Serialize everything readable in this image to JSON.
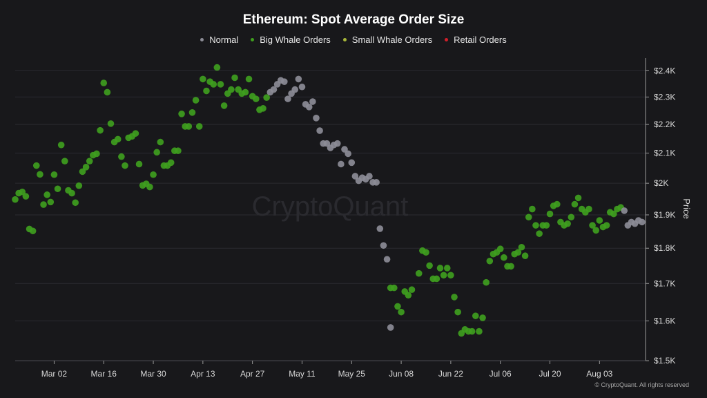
{
  "colors": {
    "background": "#18181b",
    "normal": "#8c8c96",
    "big_whale": "#3f9e1e",
    "small_whale": "#a7b63a",
    "retail": "#d11f2a",
    "grid": "#2b2b31"
  },
  "watermark": "CryptoQuant",
  "copyright": "© CryptoQuant. All rights reserved",
  "chart_data": {
    "type": "scatter",
    "title": "Ethereum: Spot Average Order Size",
    "ylabel": "Price",
    "xlabel": "",
    "legend_position": "top-center",
    "grid": true,
    "legend": [
      {
        "name": "Normal",
        "color": "#8c8c96"
      },
      {
        "name": "Big Whale Orders",
        "color": "#3f9e1e"
      },
      {
        "name": "Small Whale Orders",
        "color": "#a7b63a"
      },
      {
        "name": "Retail Orders",
        "color": "#d11f2a"
      }
    ],
    "x_ticks": [
      "Mar 02",
      "Mar 16",
      "Mar 30",
      "Apr 13",
      "Apr 27",
      "May 11",
      "May 25",
      "Jun 08",
      "Jun 22",
      "Jul 06",
      "Jul 20",
      "Aug 03"
    ],
    "y_ticks": [
      1500,
      1600,
      1700,
      1800,
      1900,
      2000,
      2100,
      2200,
      2300,
      2400
    ],
    "y_tick_labels": [
      "$1.5K",
      "$1.6K",
      "$1.7K",
      "$1.8K",
      "$1.9K",
      "$2K",
      "$2.1K",
      "$2.2K",
      "$2.3K",
      "$2.4K"
    ],
    "x_range": [
      "2023-02-19",
      "2023-08-16"
    ],
    "y_scale": "log",
    "ylim": [
      1500,
      2450
    ],
    "series": [
      {
        "name": "Big Whale Orders",
        "color": "#3f9e1e",
        "points": [
          [
            "2023-02-19",
            1948
          ],
          [
            "2023-02-20",
            1968
          ],
          [
            "2023-02-21",
            1972
          ],
          [
            "2023-02-22",
            1958
          ],
          [
            "2023-02-23",
            1857
          ],
          [
            "2023-02-24",
            1851
          ],
          [
            "2023-02-25",
            2058
          ],
          [
            "2023-02-26",
            2029
          ],
          [
            "2023-02-27",
            1932
          ],
          [
            "2023-02-28",
            1963
          ],
          [
            "2023-03-01",
            1940
          ],
          [
            "2023-03-02",
            2028
          ],
          [
            "2023-03-03",
            1982
          ],
          [
            "2023-03-04",
            2128
          ],
          [
            "2023-03-05",
            2073
          ],
          [
            "2023-03-06",
            1977
          ],
          [
            "2023-03-07",
            1968
          ],
          [
            "2023-03-08",
            1938
          ],
          [
            "2023-03-09",
            1992
          ],
          [
            "2023-03-10",
            2038
          ],
          [
            "2023-03-11",
            2053
          ],
          [
            "2023-03-12",
            2073
          ],
          [
            "2023-03-13",
            2093
          ],
          [
            "2023-03-14",
            2098
          ],
          [
            "2023-03-15",
            2179
          ],
          [
            "2023-03-16",
            2353
          ],
          [
            "2023-03-17",
            2318
          ],
          [
            "2023-03-18",
            2203
          ],
          [
            "2023-03-19",
            2138
          ],
          [
            "2023-03-20",
            2148
          ],
          [
            "2023-03-21",
            2088
          ],
          [
            "2023-03-22",
            2058
          ],
          [
            "2023-03-23",
            2153
          ],
          [
            "2023-03-24",
            2158
          ],
          [
            "2023-03-25",
            2168
          ],
          [
            "2023-03-26",
            2063
          ],
          [
            "2023-03-27",
            1993
          ],
          [
            "2023-03-28",
            1998
          ],
          [
            "2023-03-29",
            1988
          ],
          [
            "2023-03-30",
            2028
          ],
          [
            "2023-03-31",
            2103
          ],
          [
            "2023-04-01",
            2138
          ],
          [
            "2023-04-02",
            2058
          ],
          [
            "2023-04-03",
            2058
          ],
          [
            "2023-04-04",
            2068
          ],
          [
            "2023-04-05",
            2108
          ],
          [
            "2023-04-06",
            2108
          ],
          [
            "2023-04-07",
            2238
          ],
          [
            "2023-04-08",
            2193
          ],
          [
            "2023-04-09",
            2193
          ],
          [
            "2023-04-10",
            2243
          ],
          [
            "2023-04-11",
            2288
          ],
          [
            "2023-04-12",
            2193
          ],
          [
            "2023-04-13",
            2368
          ],
          [
            "2023-04-14",
            2323
          ],
          [
            "2023-04-15",
            2358
          ],
          [
            "2023-04-16",
            2348
          ],
          [
            "2023-04-17",
            2413
          ],
          [
            "2023-04-18",
            2348
          ],
          [
            "2023-04-19",
            2268
          ],
          [
            "2023-04-20",
            2313
          ],
          [
            "2023-04-21",
            2328
          ],
          [
            "2023-04-22",
            2373
          ],
          [
            "2023-04-23",
            2328
          ],
          [
            "2023-04-24",
            2313
          ],
          [
            "2023-04-25",
            2318
          ],
          [
            "2023-04-26",
            2368
          ],
          [
            "2023-04-27",
            2303
          ],
          [
            "2023-04-28",
            2293
          ],
          [
            "2023-04-29",
            2253
          ],
          [
            "2023-04-30",
            2258
          ],
          [
            "2023-05-01",
            2298
          ],
          [
            "2023-06-05",
            1688
          ],
          [
            "2023-06-06",
            1688
          ],
          [
            "2023-06-07",
            1638
          ],
          [
            "2023-06-08",
            1623
          ],
          [
            "2023-06-09",
            1678
          ],
          [
            "2023-06-10",
            1668
          ],
          [
            "2023-06-11",
            1683
          ],
          [
            "2023-06-13",
            1728
          ],
          [
            "2023-06-14",
            1793
          ],
          [
            "2023-06-15",
            1788
          ],
          [
            "2023-06-16",
            1750
          ],
          [
            "2023-06-17",
            1713
          ],
          [
            "2023-06-18",
            1713
          ],
          [
            "2023-06-19",
            1743
          ],
          [
            "2023-06-20",
            1723
          ],
          [
            "2023-06-21",
            1743
          ],
          [
            "2023-06-22",
            1723
          ],
          [
            "2023-06-23",
            1663
          ],
          [
            "2023-06-24",
            1623
          ],
          [
            "2023-06-25",
            1568
          ],
          [
            "2023-06-26",
            1578
          ],
          [
            "2023-06-27",
            1573
          ],
          [
            "2023-06-28",
            1573
          ],
          [
            "2023-06-29",
            1613
          ],
          [
            "2023-06-30",
            1573
          ],
          [
            "2023-07-01",
            1608
          ],
          [
            "2023-07-02",
            1703
          ],
          [
            "2023-07-03",
            1763
          ],
          [
            "2023-07-04",
            1783
          ],
          [
            "2023-07-05",
            1788
          ],
          [
            "2023-07-06",
            1798
          ],
          [
            "2023-07-07",
            1773
          ],
          [
            "2023-07-08",
            1748
          ],
          [
            "2023-07-09",
            1748
          ],
          [
            "2023-07-10",
            1783
          ],
          [
            "2023-07-11",
            1788
          ],
          [
            "2023-07-12",
            1803
          ],
          [
            "2023-07-13",
            1778
          ],
          [
            "2023-07-14",
            1893
          ],
          [
            "2023-07-15",
            1918
          ],
          [
            "2023-07-16",
            1868
          ],
          [
            "2023-07-17",
            1843
          ],
          [
            "2023-07-18",
            1868
          ],
          [
            "2023-07-19",
            1868
          ],
          [
            "2023-07-20",
            1903
          ],
          [
            "2023-07-21",
            1928
          ],
          [
            "2023-07-22",
            1933
          ],
          [
            "2023-07-23",
            1878
          ],
          [
            "2023-07-24",
            1868
          ],
          [
            "2023-07-25",
            1873
          ],
          [
            "2023-07-26",
            1893
          ],
          [
            "2023-07-27",
            1933
          ],
          [
            "2023-07-28",
            1953
          ],
          [
            "2023-07-29",
            1918
          ],
          [
            "2023-07-30",
            1908
          ],
          [
            "2023-07-31",
            1918
          ],
          [
            "2023-08-01",
            1868
          ],
          [
            "2023-08-02",
            1853
          ],
          [
            "2023-08-03",
            1883
          ],
          [
            "2023-08-04",
            1863
          ],
          [
            "2023-08-05",
            1868
          ],
          [
            "2023-08-06",
            1908
          ],
          [
            "2023-08-07",
            1903
          ],
          [
            "2023-08-08",
            1918
          ],
          [
            "2023-08-09",
            1923
          ]
        ]
      },
      {
        "name": "Normal",
        "color": "#8c8c96",
        "points": [
          [
            "2023-05-02",
            2318
          ],
          [
            "2023-05-03",
            2328
          ],
          [
            "2023-05-04",
            2348
          ],
          [
            "2023-05-05",
            2363
          ],
          [
            "2023-05-06",
            2358
          ],
          [
            "2023-05-07",
            2293
          ],
          [
            "2023-05-08",
            2313
          ],
          [
            "2023-05-09",
            2328
          ],
          [
            "2023-05-10",
            2368
          ],
          [
            "2023-05-11",
            2338
          ],
          [
            "2023-05-12",
            2273
          ],
          [
            "2023-05-13",
            2263
          ],
          [
            "2023-05-14",
            2283
          ],
          [
            "2023-05-15",
            2223
          ],
          [
            "2023-05-16",
            2178
          ],
          [
            "2023-05-17",
            2133
          ],
          [
            "2023-05-18",
            2133
          ],
          [
            "2023-05-19",
            2118
          ],
          [
            "2023-05-20",
            2128
          ],
          [
            "2023-05-21",
            2133
          ],
          [
            "2023-05-22",
            2063
          ],
          [
            "2023-05-23",
            2113
          ],
          [
            "2023-05-24",
            2098
          ],
          [
            "2023-05-25",
            2068
          ],
          [
            "2023-05-26",
            2023
          ],
          [
            "2023-05-27",
            2008
          ],
          [
            "2023-05-28",
            2018
          ],
          [
            "2023-05-29",
            2013
          ],
          [
            "2023-05-30",
            2023
          ],
          [
            "2023-05-31",
            2003
          ],
          [
            "2023-06-01",
            2003
          ],
          [
            "2023-06-02",
            1858
          ],
          [
            "2023-06-03",
            1808
          ],
          [
            "2023-06-04",
            1768
          ],
          [
            "2023-06-05",
            1583
          ],
          [
            "2023-08-10",
            1913
          ],
          [
            "2023-08-11",
            1868
          ],
          [
            "2023-08-12",
            1878
          ],
          [
            "2023-08-13",
            1873
          ],
          [
            "2023-08-14",
            1883
          ],
          [
            "2023-08-15",
            1878
          ]
        ]
      }
    ]
  }
}
